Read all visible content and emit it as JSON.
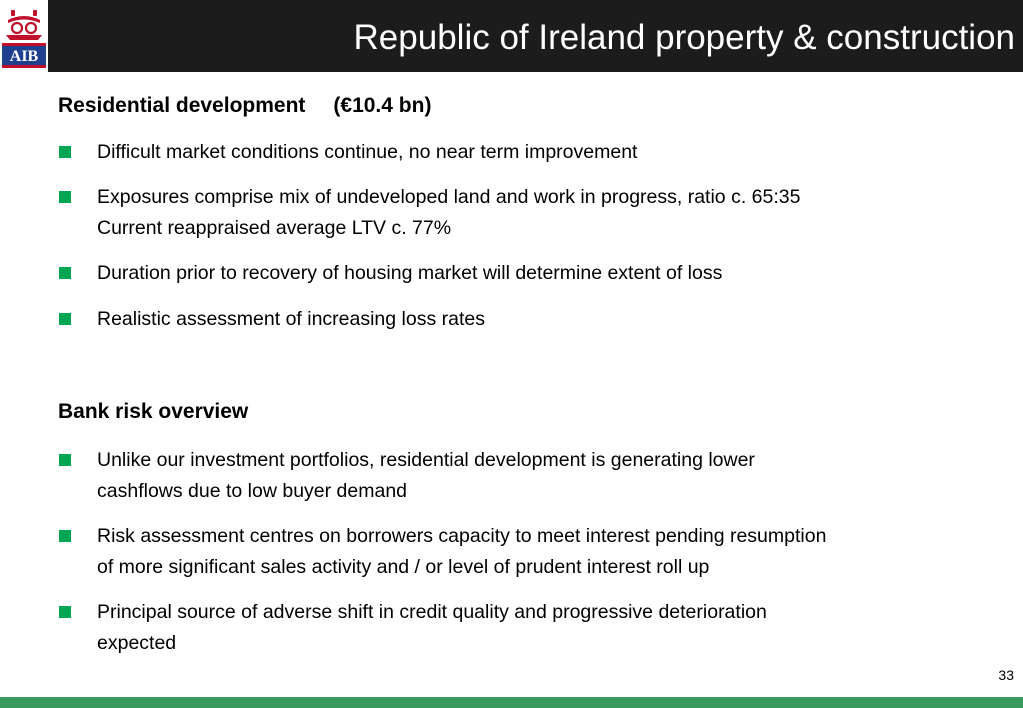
{
  "header": {
    "title": "Republic of Ireland property & construction",
    "logo_text": "AIB"
  },
  "sections": [
    {
      "heading": "Residential development",
      "amount": "(€10.4 bn)",
      "bullets": [
        {
          "lines": [
            "Difficult market conditions continue, no near term improvement"
          ]
        },
        {
          "lines": [
            "Exposures comprise mix of undeveloped land and work in progress, ratio c. 65:35",
            "Current reappraised average LTV c. 77%"
          ]
        },
        {
          "lines": [
            "Duration prior to recovery of housing market will determine extent of loss"
          ]
        },
        {
          "lines": [
            "Realistic assessment of increasing loss rates"
          ]
        }
      ]
    },
    {
      "heading": "Bank risk overview",
      "bullets": [
        {
          "lines": [
            "Unlike our investment portfolios, residential development is generating lower",
            "cashflows due to low buyer demand"
          ]
        },
        {
          "lines": [
            "Risk assessment centres on borrowers capacity to meet interest pending resumption",
            "of more significant sales activity and / or level of prudent interest roll up"
          ]
        },
        {
          "lines": [
            "Principal source of adverse shift in credit quality and progressive deterioration",
            "expected"
          ]
        }
      ]
    }
  ],
  "page_number": "33",
  "colors": {
    "header_bg": "#1c1c1c",
    "bullet": "#00a651",
    "footer_bar": "#3a9a5e",
    "logo_red": "#c0102c"
  }
}
